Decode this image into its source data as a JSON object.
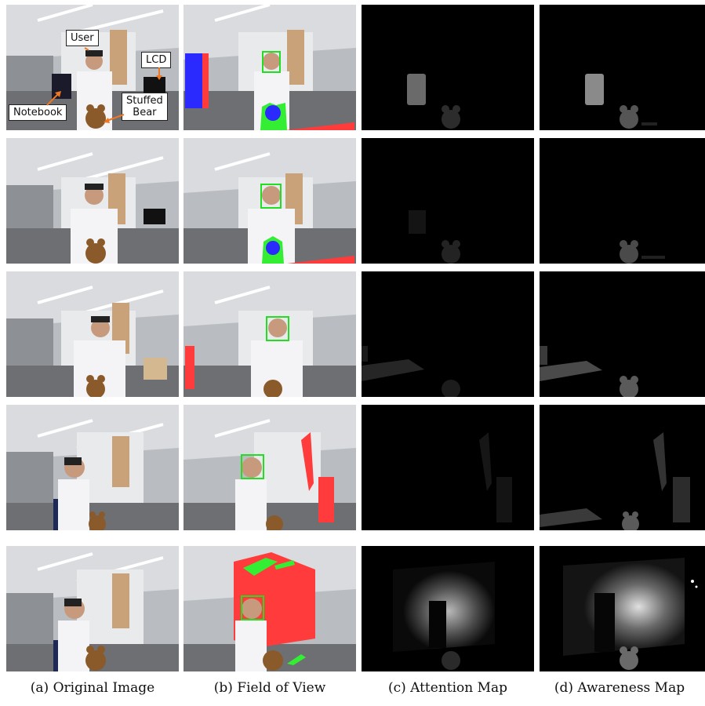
{
  "annotations": {
    "user": "User",
    "lcd": "LCD",
    "notebook": "Notebook",
    "stuffed_bear_line1": "Stuffed",
    "stuffed_bear_line2": "Bear"
  },
  "captions": {
    "a": "(a) Original Image",
    "b": "(b) Field of View",
    "c": "(c) Attention Map",
    "d": "(d) Awareness Map"
  },
  "colors": {
    "face_box": "#22dd22",
    "fov_red": "#ff3b3b",
    "fov_blue": "#2a2aff",
    "fov_green": "#33ee33",
    "map_bg": "#000000"
  }
}
